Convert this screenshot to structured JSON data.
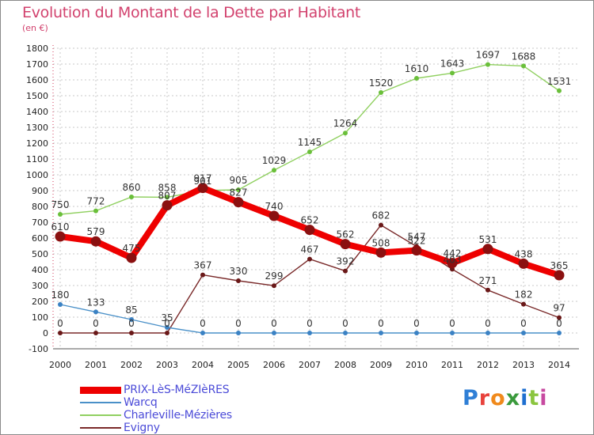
{
  "header": {
    "title": "Evolution du Montant de la Dette par Habitant",
    "subtitle": "(en €)"
  },
  "logo": {
    "text": "Proxiti",
    "letters": [
      "P",
      "r",
      "o",
      "x",
      "i",
      "t",
      "i"
    ],
    "letter_colors": [
      "#2f7fd6",
      "#e8423c",
      "#f08a1c",
      "#3a9a3c",
      "#1e6fd0",
      "#8bc53f",
      "#c74aa0"
    ]
  },
  "chart_data": {
    "type": "line",
    "title": "Evolution du Montant de la Dette par Habitant",
    "subtitle": "(en €)",
    "categories": [
      "2000",
      "2001",
      "2002",
      "2003",
      "2004",
      "2005",
      "2006",
      "2007",
      "2008",
      "2009",
      "2010",
      "2011",
      "2012",
      "2013",
      "2014"
    ],
    "ylim": [
      -100,
      1800
    ],
    "yticks": [
      -100,
      0,
      100,
      200,
      300,
      400,
      500,
      600,
      700,
      800,
      900,
      1000,
      1100,
      1200,
      1300,
      1400,
      1500,
      1600,
      1700,
      1800
    ],
    "grid": true,
    "legend_position": "bottom-left",
    "series": [
      {
        "name": "PRIX-LèS-MéZIèRES",
        "color": "#ee0000",
        "marker_color": "#8b1010",
        "thick": true,
        "values": [
          610,
          579,
          475,
          807,
          917,
          827,
          740,
          652,
          562,
          508,
          522,
          442,
          531,
          438,
          365
        ],
        "labels": [
          "610",
          "579",
          "475",
          "807",
          "917",
          "827",
          "740",
          "652",
          "562",
          "508",
          "522",
          "442",
          "531",
          "438",
          "365"
        ]
      },
      {
        "name": "Warcq",
        "color": "#4a90c8",
        "marker_color": "#3b82c4",
        "thick": false,
        "values": [
          180,
          133,
          85,
          35,
          0,
          0,
          0,
          0,
          0,
          0,
          0,
          0,
          0,
          0,
          0
        ],
        "labels": [
          "180",
          "133",
          "85",
          "35",
          "0",
          "0",
          "0",
          "0",
          "0",
          "0",
          "0",
          "0",
          "0",
          "0",
          "0"
        ]
      },
      {
        "name": "Charleville-Mézières",
        "color": "#90d060",
        "marker_color": "#6abf3a",
        "thick": false,
        "values": [
          750,
          772,
          860,
          858,
          901,
          905,
          1029,
          1145,
          1264,
          1520,
          1610,
          1643,
          1697,
          1688,
          1531
        ],
        "labels": [
          "750",
          "772",
          "860",
          "858",
          "901",
          "905",
          "1029",
          "1145",
          "1264",
          "1520",
          "1610",
          "1643",
          "1697",
          "1688",
          "1531"
        ]
      },
      {
        "name": "Evigny",
        "color": "#7a2a2a",
        "marker_color": "#6a1818",
        "thick": false,
        "values": [
          0,
          0,
          0,
          0,
          367,
          330,
          299,
          467,
          392,
          682,
          547,
          403,
          271,
          182,
          97
        ],
        "labels": [
          "0",
          "0",
          "0",
          "0",
          "367",
          "330",
          "299",
          "467",
          "392",
          "682",
          "547",
          "403",
          "271",
          "182",
          "97"
        ]
      }
    ]
  }
}
